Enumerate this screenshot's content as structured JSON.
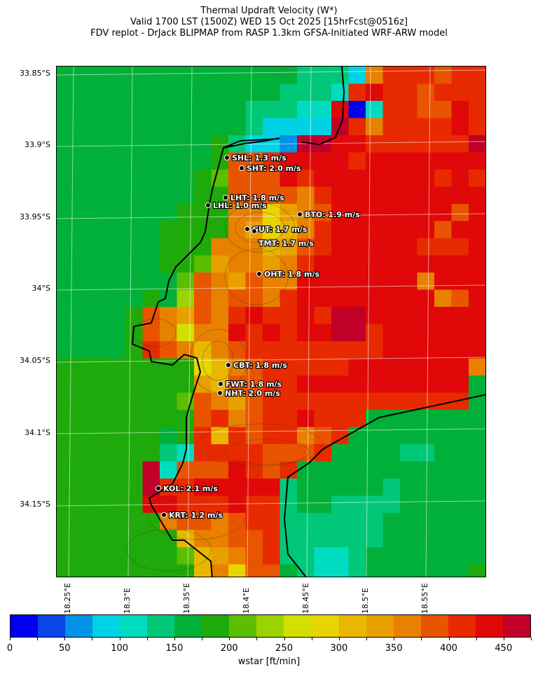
{
  "title": {
    "line1": "Thermal Updraft Velocity (W*)",
    "line2": "Valid 1700 LST (1500Z) WED 15 Oct 2025 [15hrFcst@0516z]",
    "line3": "FDV replot - DrJack BLIPMAP from RASP 1.3km GFSA-Initiated WRF-ARW model"
  },
  "lat_ticks": [
    "33.85°S",
    "33.9°S",
    "33.95°S",
    "34°S",
    "34.05°S",
    "34.1°S",
    "34.15°S"
  ],
  "lon_ticks": [
    "18.25°E",
    "18.3°E",
    "18.35°E",
    "18.4°E",
    "18.45°E",
    "18.5°E",
    "18.55°E"
  ],
  "stations": [
    {
      "label": "SHL: 1.3 m/s"
    },
    {
      "label": "SHT: 2.0 m/s"
    },
    {
      "label": "LHT: 1.8 m/s"
    },
    {
      "label": "LHL: 1.0 m/s"
    },
    {
      "label": "BTO: 1.9 m/s"
    },
    {
      "label": "GUT: 1.7 m/s"
    },
    {
      "label": "TMT: 1.7 m/s"
    },
    {
      "label": "OHT: 1.8 m/s"
    },
    {
      "label": "CBT: 1.8 m/s"
    },
    {
      "label": "FWT: 1.8 m/s"
    },
    {
      "label": "NHT: 2.0 m/s"
    },
    {
      "label": "KOL: 2.1 m/s"
    },
    {
      "label": "KRT: 1.2 m/s"
    }
  ],
  "colorbar": {
    "label": "wstar [ft/min]",
    "min": 0,
    "max": 475,
    "step": 25,
    "tick_labels": [
      "0",
      "50",
      "100",
      "150",
      "200",
      "250",
      "300",
      "350",
      "400",
      "450"
    ],
    "colors": [
      "#0000ee",
      "#0a45e8",
      "#0092e6",
      "#00d2e6",
      "#00dcc0",
      "#00c878",
      "#00b038",
      "#1eaa0a",
      "#5cbe00",
      "#9cd200",
      "#d2e000",
      "#e8d400",
      "#e8b800",
      "#e8a000",
      "#e88000",
      "#e85400",
      "#e82a00",
      "#e00808",
      "#c00028"
    ]
  },
  "wstar_grid_class_rows": [
    "666666666666665553egggfgg",
    "66666666666665554ghggfggg",
    "6666666666655544h04ggffhg",
    "6666666666653333igegggghg",
    "66666666675332iihhggggggi",
    "6666666667ffghhhhghhhhhhh",
    "6666666678fffhghhhhhhhghg",
    "6666666677ffffeghhhhhhhhh",
    "6666666777eebdefhhhhhhhfh",
    "6666667777edbceghhhhhhfhh",
    "666666777eeecdfghhhhhgggh",
    "666666778deedeghhhhhhhhhh",
    "66666668fedfeehhhhhhhehhh",
    "66666769feffeghhhhhhhhefh",
    "66667fedfeghgghgiihhhhhhh",
    "66667feaeehghghhiighhhhhh",
    "66667gfecefgggggggghhhhhh",
    "77777777bcefggggghhhhhhhe",
    "77777777dcffgghhhhhhhhhh6",
    "77777778fedfgggggggggggg6",
    "77777777fgefgghggg6666666",
    "77777767gcgfggefg66666666",
    "77777754ggggfffg666655666",
    "77777i4fffhgfg66666666666",
    "77777igghhhhh566666566666",
    "77777hhggghgg566555566666",
    "777777effefgg555555666666",
    "7777777ceeffg555555666666",
    "77777778cdefg554456666666",
    "77777777cebff654456666667"
  ]
}
